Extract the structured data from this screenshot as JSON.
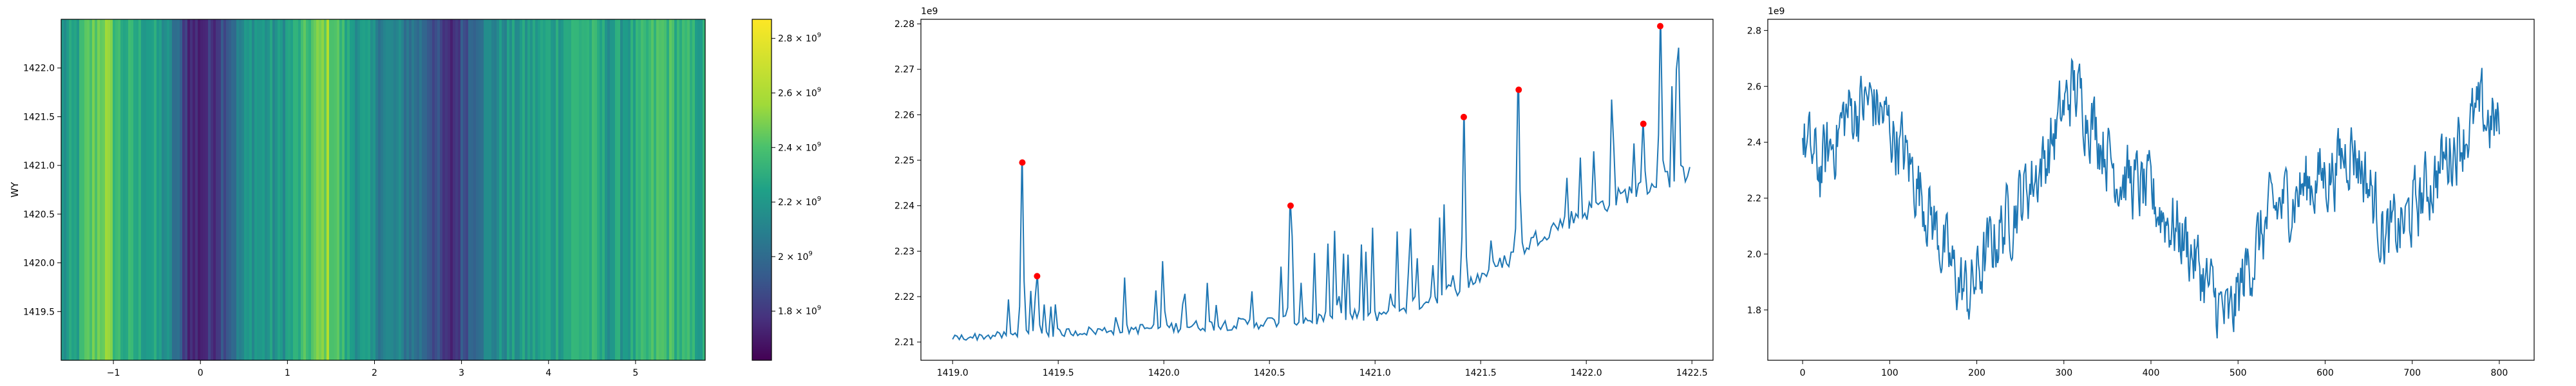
{
  "chart_data": [
    {
      "type": "heatmap",
      "xlabel": "",
      "ylabel": "WY",
      "xlim": [
        -1.6,
        5.8
      ],
      "ylim": [
        1419.0,
        1422.5
      ],
      "x_ticks": [
        "−1",
        "0",
        "1",
        "2",
        "3",
        "4",
        "5"
      ],
      "x_tick_values": [
        -1,
        0,
        1,
        2,
        3,
        4,
        5
      ],
      "y_ticks": [
        "1419.5",
        "1420.0",
        "1420.5",
        "1421.0",
        "1421.5",
        "1422.0"
      ],
      "y_tick_values": [
        1419.5,
        1420.0,
        1420.5,
        1421.0,
        1421.5,
        1422.0
      ],
      "colormap": "viridis",
      "colorbar": {
        "min": 1620000000.0,
        "max": 2870000000.0,
        "tick_values": [
          1800000000.0,
          2000000000.0,
          2200000000.0,
          2400000000.0,
          2600000000.0,
          2800000000.0
        ],
        "ticks": [
          {
            "mantissa": "1.8",
            "base": "10",
            "exp": "9"
          },
          {
            "mantissa": "2",
            "base": "10",
            "exp": "9"
          },
          {
            "mantissa": "2.2",
            "base": "10",
            "exp": "9"
          },
          {
            "mantissa": "2.4",
            "base": "10",
            "exp": "9"
          },
          {
            "mantissa": "2.6",
            "base": "10",
            "exp": "9"
          },
          {
            "mantissa": "2.8",
            "base": "10",
            "exp": "9"
          }
        ]
      },
      "column_anchors": [
        [
          -1.6,
          2250000000.0
        ],
        [
          -1.45,
          2300000000.0
        ],
        [
          -1.3,
          2500000000.0
        ],
        [
          -1.1,
          2650000000.0
        ],
        [
          -0.9,
          2400000000.0
        ],
        [
          -0.6,
          2350000000.0
        ],
        [
          -0.4,
          2250000000.0
        ],
        [
          -0.1,
          1750000000.0
        ],
        [
          0.1,
          1780000000.0
        ],
        [
          0.3,
          2000000000.0
        ],
        [
          0.6,
          2300000000.0
        ],
        [
          0.9,
          2250000000.0
        ],
        [
          1.2,
          2450000000.0
        ],
        [
          1.45,
          2650000000.0
        ],
        [
          1.7,
          2350000000.0
        ],
        [
          2.0,
          2200000000.0
        ],
        [
          2.3,
          2150000000.0
        ],
        [
          2.6,
          2050000000.0
        ],
        [
          2.85,
          1720000000.0
        ],
        [
          2.95,
          1850000000.0
        ],
        [
          3.2,
          2150000000.0
        ],
        [
          3.5,
          2250000000.0
        ],
        [
          3.8,
          2300000000.0
        ],
        [
          4.1,
          2350000000.0
        ],
        [
          4.4,
          2450000000.0
        ],
        [
          4.7,
          2300000000.0
        ],
        [
          5.0,
          2350000000.0
        ],
        [
          5.3,
          2500000000.0
        ],
        [
          5.6,
          2400000000.0
        ],
        [
          5.8,
          2350000000.0
        ]
      ]
    },
    {
      "type": "line",
      "xlim": [
        1418.85,
        1422.6
      ],
      "ylim": [
        2206000000.0,
        2281000000.0
      ],
      "offset_text": "1e9",
      "x_ticks": [
        "1419.0",
        "1419.5",
        "1420.0",
        "1420.5",
        "1421.0",
        "1421.5",
        "1422.0",
        "1422.5"
      ],
      "x_tick_values": [
        1419.0,
        1419.5,
        1420.0,
        1420.5,
        1421.0,
        1421.5,
        1422.0,
        1422.5
      ],
      "y_ticks": [
        "2.21",
        "2.22",
        "2.23",
        "2.24",
        "2.25",
        "2.26",
        "2.27",
        "2.28"
      ],
      "y_tick_values": [
        2210000000.0,
        2220000000.0,
        2230000000.0,
        2240000000.0,
        2250000000.0,
        2260000000.0,
        2270000000.0,
        2280000000.0
      ],
      "series_color": "#1f77b4",
      "peak_color": "#ff0000",
      "baseline": [
        [
          1419.0,
          2210500000.0
        ],
        [
          1419.5,
          2211500000.0
        ],
        [
          1420.0,
          2212500000.0
        ],
        [
          1420.5,
          2213500000.0
        ],
        [
          1421.0,
          2215000000.0
        ],
        [
          1421.2,
          2217500000.0
        ],
        [
          1421.4,
          2221000000.0
        ],
        [
          1421.6,
          2226000000.0
        ],
        [
          1421.8,
          2233000000.0
        ],
        [
          1422.0,
          2237500000.0
        ],
        [
          1422.2,
          2241500000.0
        ],
        [
          1422.5,
          2246500000.0
        ]
      ],
      "peaks": [
        {
          "x": 1419.33,
          "y": 2249500000.0
        },
        {
          "x": 1419.4,
          "y": 2224500000.0
        },
        {
          "x": 1420.6,
          "y": 2240000000.0
        },
        {
          "x": 1421.42,
          "y": 2259500000.0
        },
        {
          "x": 1421.68,
          "y": 2265500000.0
        },
        {
          "x": 1422.27,
          "y": 2258000000.0
        },
        {
          "x": 1422.35,
          "y": 2279500000.0
        }
      ],
      "end_value": 2248500000.0,
      "x_start": 1419.0,
      "x_end": 1422.49
    },
    {
      "type": "line",
      "xlim": [
        -40,
        840
      ],
      "ylim": [
        1620000000.0,
        2840000000.0
      ],
      "offset_text": "1e9",
      "x_ticks": [
        "0",
        "100",
        "200",
        "300",
        "400",
        "500",
        "600",
        "700",
        "800"
      ],
      "x_tick_values": [
        0,
        100,
        200,
        300,
        400,
        500,
        600,
        700,
        800
      ],
      "y_ticks": [
        "1.8",
        "2.0",
        "2.2",
        "2.4",
        "2.6",
        "2.8"
      ],
      "y_tick_values": [
        1800000000.0,
        2000000000.0,
        2200000000.0,
        2400000000.0,
        2600000000.0,
        2800000000.0
      ],
      "series_color": "#1f77b4",
      "trend": [
        [
          0,
          2400000000.0
        ],
        [
          20,
          2300000000.0
        ],
        [
          50,
          2500000000.0
        ],
        [
          80,
          2550000000.0
        ],
        [
          110,
          2400000000.0
        ],
        [
          140,
          2200000000.0
        ],
        [
          170,
          1950000000.0
        ],
        [
          190,
          1850000000.0
        ],
        [
          220,
          2050000000.0
        ],
        [
          250,
          2200000000.0
        ],
        [
          280,
          2350000000.0
        ],
        [
          310,
          2600000000.0
        ],
        [
          330,
          2500000000.0
        ],
        [
          360,
          2300000000.0
        ],
        [
          400,
          2200000000.0
        ],
        [
          440,
          2050000000.0
        ],
        [
          470,
          1850000000.0
        ],
        [
          490,
          1750000000.0
        ],
        [
          510,
          1950000000.0
        ],
        [
          540,
          2150000000.0
        ],
        [
          580,
          2250000000.0
        ],
        [
          610,
          2300000000.0
        ],
        [
          630,
          2400000000.0
        ],
        [
          650,
          2250000000.0
        ],
        [
          670,
          2050000000.0
        ],
        [
          690,
          2100000000.0
        ],
        [
          720,
          2250000000.0
        ],
        [
          750,
          2400000000.0
        ],
        [
          780,
          2500000000.0
        ],
        [
          800,
          2450000000.0
        ]
      ],
      "n_points": 800,
      "x_end": 800
    }
  ]
}
